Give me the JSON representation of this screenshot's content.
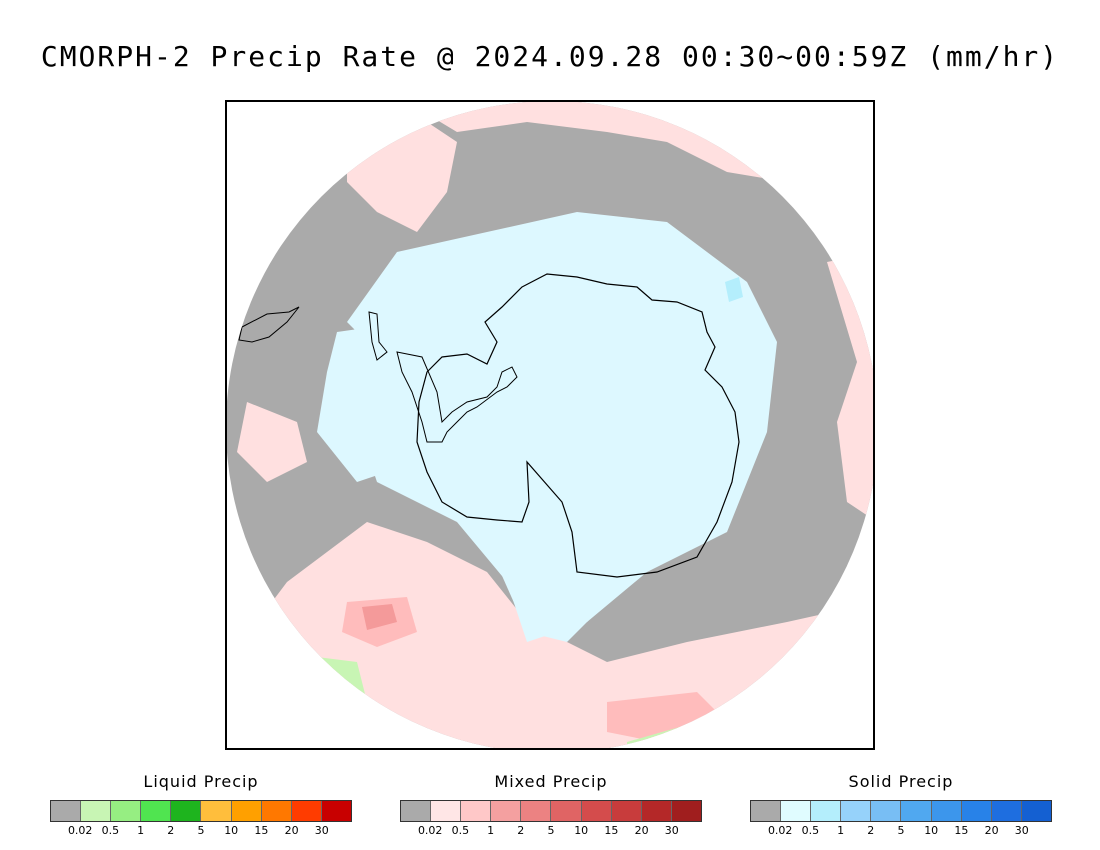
{
  "title": "CMORPH-2 Precip Rate @ 2024.09.28 00:30~00:59Z (mm/hr)",
  "map": {
    "background_color": "#aaaaaa",
    "coastline_color": "#000000",
    "region_colors": {
      "mixed_light": "#ffe0e0",
      "mixed_mid": "#ffbcbc",
      "mixed_heavy": "#f49a9a",
      "solid_light": "#ddf8ff",
      "solid_mid": "#b4eefc",
      "liquid_light": "#c8f5b4"
    }
  },
  "legends": [
    {
      "title": "Liquid Precip",
      "colors": [
        "#aaaaaa",
        "#c8f5b4",
        "#96ee82",
        "#50e450",
        "#1eb41e",
        "#ffbe3c",
        "#ffa000",
        "#ff7800",
        "#ff3c00",
        "#c80000"
      ],
      "ticks": [
        "0.02",
        "0.5",
        "1",
        "2",
        "5",
        "10",
        "15",
        "20",
        "30"
      ]
    },
    {
      "title": "Mixed Precip",
      "colors": [
        "#aaaaaa",
        "#ffe6e6",
        "#ffc8c8",
        "#f4a0a0",
        "#ec8282",
        "#e06464",
        "#d44c4c",
        "#c83c3c",
        "#b42828",
        "#a01e1e"
      ],
      "ticks": [
        "0.02",
        "0.5",
        "1",
        "2",
        "5",
        "10",
        "15",
        "20",
        "30"
      ]
    },
    {
      "title": "Solid Precip",
      "colors": [
        "#aaaaaa",
        "#e0fcff",
        "#b4eefc",
        "#96d2fa",
        "#78bef4",
        "#50a8f0",
        "#3c96ec",
        "#2882e8",
        "#1e6ee0",
        "#1460d2"
      ],
      "ticks": [
        "0.02",
        "0.5",
        "1",
        "2",
        "5",
        "10",
        "15",
        "20",
        "30"
      ]
    }
  ]
}
